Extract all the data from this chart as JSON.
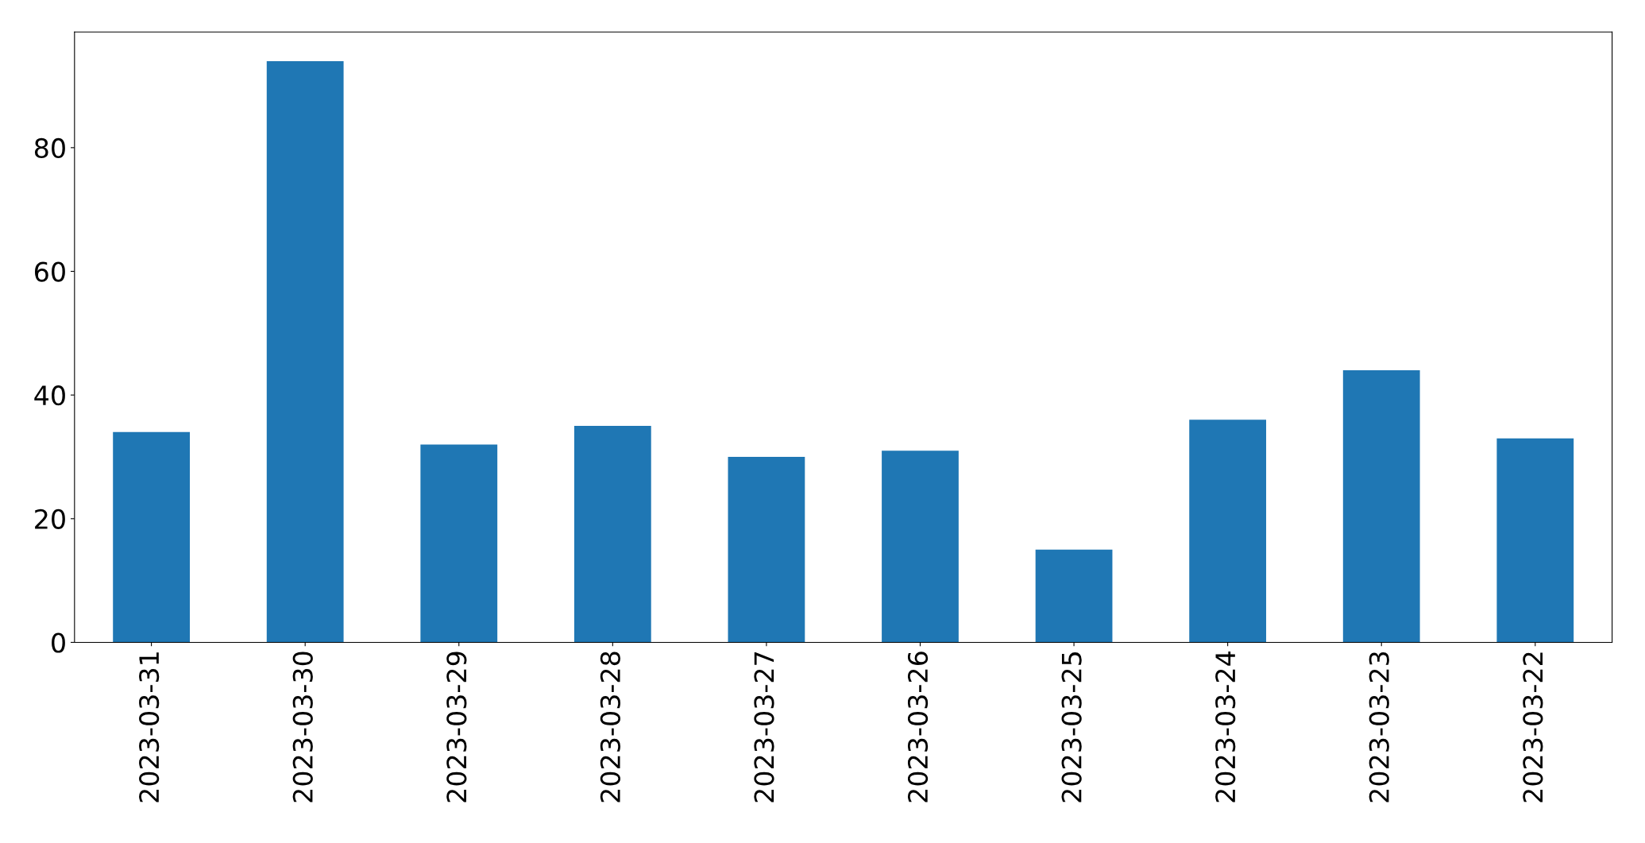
{
  "chart_data": {
    "type": "bar",
    "categories": [
      "2023-03-31",
      "2023-03-30",
      "2023-03-29",
      "2023-03-28",
      "2023-03-27",
      "2023-03-26",
      "2023-03-25",
      "2023-03-24",
      "2023-03-23",
      "2023-03-22"
    ],
    "values": [
      34,
      94,
      32,
      35,
      30,
      31,
      15,
      36,
      44,
      33
    ],
    "color": "#1f77b4",
    "ylim": [
      0,
      98.7
    ],
    "yticks": [
      0,
      20,
      40,
      60,
      80
    ],
    "grid": false,
    "legend": false
  }
}
